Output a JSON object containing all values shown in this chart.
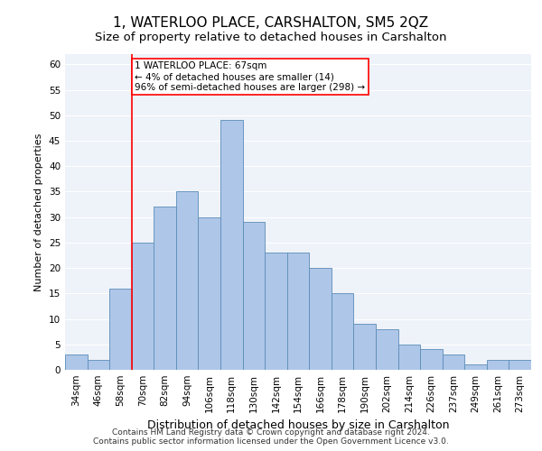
{
  "title": "1, WATERLOO PLACE, CARSHALTON, SM5 2QZ",
  "subtitle": "Size of property relative to detached houses in Carshalton",
  "xlabel": "Distribution of detached houses by size in Carshalton",
  "ylabel": "Number of detached properties",
  "bin_labels": [
    "34sqm",
    "46sqm",
    "58sqm",
    "70sqm",
    "82sqm",
    "94sqm",
    "106sqm",
    "118sqm",
    "130sqm",
    "142sqm",
    "154sqm",
    "166sqm",
    "178sqm",
    "190sqm",
    "202sqm",
    "214sqm",
    "226sqm",
    "237sqm",
    "249sqm",
    "261sqm",
    "273sqm"
  ],
  "bar_heights": [
    3,
    2,
    16,
    25,
    32,
    35,
    30,
    49,
    29,
    23,
    23,
    20,
    15,
    9,
    8,
    5,
    4,
    3,
    1,
    2,
    2
  ],
  "bar_color": "#aec6e8",
  "bar_edge_color": "#5b8db8",
  "bar_width": 1.0,
  "ylim": [
    0,
    62
  ],
  "yticks": [
    0,
    5,
    10,
    15,
    20,
    25,
    30,
    35,
    40,
    45,
    50,
    55,
    60
  ],
  "red_line_x": 3,
  "annotation_line1": "1 WATERLOO PLACE: 67sqm",
  "annotation_line2": "← 4% of detached houses are smaller (14)",
  "annotation_line3": "96% of semi-detached houses are larger (298) →",
  "annotation_box_color": "white",
  "annotation_box_edge_color": "red",
  "footer_line1": "Contains HM Land Registry data © Crown copyright and database right 2024.",
  "footer_line2": "Contains public sector information licensed under the Open Government Licence v3.0.",
  "background_color": "#eef2f9",
  "grid_color": "#ffffff",
  "title_fontsize": 11,
  "subtitle_fontsize": 9.5,
  "ylabel_fontsize": 8,
  "xlabel_fontsize": 9,
  "tick_fontsize": 7.5,
  "annotation_fontsize": 7.5,
  "footer_fontsize": 6.5
}
